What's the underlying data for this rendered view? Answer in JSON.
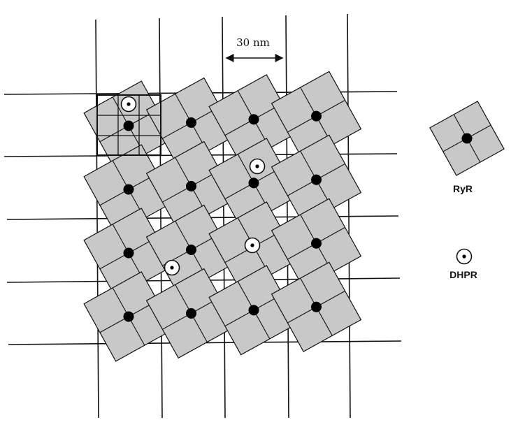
{
  "scale_bar": {
    "label": "30 nm"
  },
  "legend": {
    "ryr_label": "RyR",
    "dhpr_label": "DHPR",
    "ryr_icon": "ryr-tetramer-icon",
    "dhpr_icon": "dhpr-ring-icon"
  },
  "colors": {
    "ryr_fill": "#c8c8c8",
    "line": "#111111",
    "dot": "#000000",
    "background": "#ffffff"
  },
  "lattice": {
    "rows": 4,
    "columns": 4,
    "dhpr_count": 4
  }
}
